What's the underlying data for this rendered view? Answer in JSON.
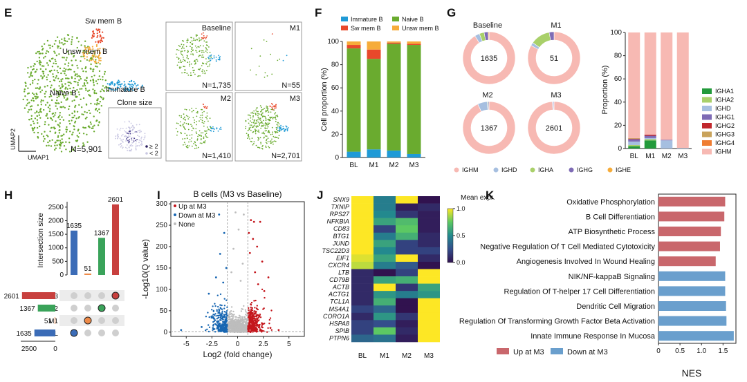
{
  "panels": {
    "E": "E",
    "F": "F",
    "G": "G",
    "H": "H",
    "I": "I",
    "J": "J",
    "K": "K"
  },
  "colors": {
    "naive": "#6aab2f",
    "immature": "#1f9ad6",
    "sw": "#e8482b",
    "unsw": "#f6ac3a",
    "up": "#c9676c",
    "down": "#6a9fcd",
    "volc_up": "#c4161c",
    "volc_down": "#1766b2",
    "volc_none": "#bdbdbd",
    "ighm": "#f7b9b3",
    "ighd": "#a6bfe0",
    "igha1": "#239a3b",
    "igha2": "#a9d06a",
    "ighg1": "#7e6bb5",
    "ighg2": "#c1272d",
    "ighg3": "#c9a35c",
    "ighg4": "#ef7d32"
  },
  "umap": {
    "labels": {
      "sw": "Sw mem B",
      "unsw": "Unsw mem B",
      "naive": "Naive B",
      "immature": "Immature B"
    },
    "n_label": "N=5,901",
    "xaxis": "UMAP1",
    "yaxis": "UMAP2",
    "clone_title": "Clone size",
    "clone_legend": [
      "≥ 2",
      "< 2"
    ],
    "small": [
      {
        "name": "Baseline",
        "n": "N=1,735"
      },
      {
        "name": "M1",
        "n": "N=55"
      },
      {
        "name": "M2",
        "n": "N=1,410"
      },
      {
        "name": "M3",
        "n": "N=2,701"
      }
    ]
  },
  "chart_data": [
    {
      "panel": "F",
      "type": "bar",
      "stacked": true,
      "categories": [
        "BL",
        "M1",
        "M2",
        "M3"
      ],
      "ylabel": "Cell proportion (%)",
      "ylim": [
        0,
        100
      ],
      "yticks": [
        0,
        20,
        40,
        60,
        80,
        100
      ],
      "series": [
        {
          "name": "Immature B",
          "key": "immature",
          "values": [
            5,
            7,
            6,
            3
          ]
        },
        {
          "name": "Naive B",
          "key": "naive",
          "values": [
            89,
            78,
            92,
            94
          ]
        },
        {
          "name": "Sw mem B",
          "key": "sw",
          "values": [
            3,
            8,
            1,
            1
          ]
        },
        {
          "name": "Unsw mem B",
          "key": "unsw",
          "values": [
            3,
            7,
            1,
            2
          ]
        }
      ]
    },
    {
      "panel": "G-donuts",
      "type": "pie",
      "legend": [
        {
          "name": "IGHM",
          "key": "ighm"
        },
        {
          "name": "IGHD",
          "key": "ighd"
        },
        {
          "name": "IGHA",
          "key": "igha2"
        },
        {
          "name": "IGHG",
          "key": "ighg1"
        },
        {
          "name": "IGHE",
          "key": "unsw"
        }
      ],
      "donuts": [
        {
          "title": "Baseline",
          "center": "1635",
          "slices": [
            {
              "key": "ighm",
              "v": 91
            },
            {
              "key": "ighd",
              "v": 3
            },
            {
              "key": "igha2",
              "v": 3
            },
            {
              "key": "ighg1",
              "v": 2.5
            },
            {
              "key": "unsw",
              "v": 0.5
            }
          ]
        },
        {
          "title": "M1",
          "center": "51",
          "slices": [
            {
              "key": "ighm",
              "v": 83
            },
            {
              "key": "ighd",
              "v": 2
            },
            {
              "key": "igha2",
              "v": 12
            },
            {
              "key": "ighg1",
              "v": 3
            }
          ]
        },
        {
          "title": "M2",
          "center": "1367",
          "slices": [
            {
              "key": "ighm",
              "v": 93
            },
            {
              "key": "ighd",
              "v": 6
            },
            {
              "key": "igha2",
              "v": 0.5
            },
            {
              "key": "ighg1",
              "v": 0.5
            }
          ]
        },
        {
          "title": "M3",
          "center": "2601",
          "slices": [
            {
              "key": "ighm",
              "v": 99
            },
            {
              "key": "ighd",
              "v": 0.6
            },
            {
              "key": "ighg1",
              "v": 0.4
            }
          ]
        }
      ]
    },
    {
      "panel": "G-bars",
      "type": "bar",
      "stacked": true,
      "categories": [
        "BL",
        "M1",
        "M2",
        "M3"
      ],
      "ylabel": "Proportion (%)",
      "ylim": [
        0,
        100
      ],
      "yticks": [
        0,
        20,
        40,
        60,
        80,
        100
      ],
      "series": [
        {
          "name": "IGHA1",
          "key": "igha1",
          "values": [
            2,
            7,
            0,
            0
          ]
        },
        {
          "name": "IGHA2",
          "key": "igha2",
          "values": [
            1,
            1,
            0,
            0
          ]
        },
        {
          "name": "IGHD",
          "key": "ighd",
          "values": [
            3,
            1,
            7,
            0.5
          ]
        },
        {
          "name": "IGHG1",
          "key": "ighg1",
          "values": [
            2,
            2,
            0.5,
            0
          ]
        },
        {
          "name": "IGHG2",
          "key": "ighg2",
          "values": [
            0.5,
            1,
            0,
            0
          ]
        },
        {
          "name": "IGHG3",
          "key": "ighg3",
          "values": [
            0.5,
            0,
            0,
            0
          ]
        },
        {
          "name": "IGHG4",
          "key": "ighg4",
          "values": [
            0,
            0,
            0,
            0
          ]
        },
        {
          "name": "IGHM",
          "key": "ighm",
          "values": [
            91,
            88,
            92.5,
            99.5
          ]
        }
      ]
    },
    {
      "panel": "H",
      "type": "bar",
      "ylabel": "Intersection size",
      "yticks": [
        0,
        500,
        1000,
        1500,
        2000,
        2500
      ],
      "bars": [
        {
          "value": 1635,
          "key": "BL",
          "color": "#3b6cb7"
        },
        {
          "value": 51,
          "key": "M1",
          "color": "#ee8a48"
        },
        {
          "value": 1367,
          "key": "M2",
          "color": "#3aa35a"
        },
        {
          "value": 2601,
          "key": "M3",
          "color": "#c8403e"
        }
      ],
      "sets": [
        {
          "name": "M3",
          "size": 2601,
          "color": "#c8403e"
        },
        {
          "name": "M2",
          "size": 1367,
          "color": "#3aa35a"
        },
        {
          "name": "M1",
          "size": 51,
          "color": "#ee8a48"
        },
        {
          "name": "BL",
          "size": 1635,
          "color": "#3b6cb7"
        }
      ],
      "set_ticks": [
        "2500",
        "0"
      ]
    },
    {
      "panel": "I",
      "type": "scatter",
      "title": "B cells (M3 vs Baseline)",
      "xlabel": "Log2 (fold change)",
      "ylabel": "-Log10(Q value)",
      "xlim": [
        -6.5,
        6.5
      ],
      "ylim": [
        -10,
        305
      ],
      "xticks": [
        -5.0,
        -2.5,
        0.0,
        2.5,
        5.0
      ],
      "yticks": [
        0,
        50,
        100,
        150,
        200,
        250,
        300
      ],
      "legend": [
        "Up at M3",
        "Down at M3",
        "None"
      ],
      "annotated_points": [
        {
          "x": 1.3,
          "y": 262,
          "g": "up"
        },
        {
          "x": 1.6,
          "y": 258,
          "g": "up"
        },
        {
          "x": 2.2,
          "y": 258,
          "g": "up"
        },
        {
          "x": 1.1,
          "y": 232,
          "g": "up"
        },
        {
          "x": 1.5,
          "y": 218,
          "g": "up"
        },
        {
          "x": 1.9,
          "y": 200,
          "g": "up"
        },
        {
          "x": 1.2,
          "y": 185,
          "g": "up"
        },
        {
          "x": 2.4,
          "y": 165,
          "g": "up"
        },
        {
          "x": 1.7,
          "y": 140,
          "g": "up"
        },
        {
          "x": 3.0,
          "y": 128,
          "g": "up"
        },
        {
          "x": 2.0,
          "y": 112,
          "g": "up"
        },
        {
          "x": 2.6,
          "y": 96,
          "g": "up"
        },
        {
          "x": -1.8,
          "y": 275,
          "g": "down"
        },
        {
          "x": -1.3,
          "y": 232,
          "g": "down"
        },
        {
          "x": -1.7,
          "y": 183,
          "g": "down"
        },
        {
          "x": -1.1,
          "y": 150,
          "g": "down"
        },
        {
          "x": -2.1,
          "y": 128,
          "g": "down"
        },
        {
          "x": -1.4,
          "y": 116,
          "g": "down"
        },
        {
          "x": -2.8,
          "y": 90,
          "g": "down"
        },
        {
          "x": -0.2,
          "y": 280,
          "g": "none"
        },
        {
          "x": 0.6,
          "y": 275,
          "g": "none"
        },
        {
          "x": 0.1,
          "y": 240,
          "g": "none"
        },
        {
          "x": -0.4,
          "y": 195,
          "g": "none"
        },
        {
          "x": 0.5,
          "y": 160,
          "g": "none"
        },
        {
          "x": -0.6,
          "y": 140,
          "g": "none"
        },
        {
          "x": 0.3,
          "y": 120,
          "g": "none"
        },
        {
          "x": -5.5,
          "y": 5,
          "g": "down"
        },
        {
          "x": 4.0,
          "y": 5,
          "g": "up"
        },
        {
          "x": -3.5,
          "y": 12,
          "g": "down"
        },
        {
          "x": 3.2,
          "y": 10,
          "g": "up"
        }
      ]
    },
    {
      "panel": "J",
      "type": "heatmap",
      "columns": [
        "BL",
        "M1",
        "M2",
        "M3"
      ],
      "rows": [
        "SNX9",
        "TXNIP",
        "RPS27",
        "NFKBIA",
        "CD83",
        "BTG1",
        "JUND",
        "TSC22D3",
        "EIF1",
        "CXCR4",
        "LTB",
        "CD79B",
        "ACTB",
        "ACTG1",
        "TCL1A",
        "MS4A1",
        "CORO1A",
        "HSPA8",
        "SPIB",
        "PTPN6"
      ],
      "values": [
        [
          1.0,
          0.45,
          1.0,
          0.0
        ],
        [
          1.0,
          0.45,
          0.05,
          0.1
        ],
        [
          1.0,
          0.5,
          0.15,
          0.05
        ],
        [
          1.0,
          0.6,
          0.7,
          0.05
        ],
        [
          1.0,
          0.2,
          0.75,
          0.05
        ],
        [
          1.0,
          0.45,
          0.65,
          0.1
        ],
        [
          1.0,
          0.6,
          0.2,
          0.1
        ],
        [
          1.0,
          0.5,
          0.2,
          0.2
        ],
        [
          0.95,
          0.6,
          1.0,
          0.1
        ],
        [
          0.9,
          0.45,
          0.3,
          0.0
        ],
        [
          0.1,
          0.0,
          0.2,
          1.0
        ],
        [
          0.1,
          0.6,
          0.65,
          1.0
        ],
        [
          0.1,
          1.0,
          0.15,
          0.6
        ],
        [
          0.1,
          0.55,
          0.45,
          0.55
        ],
        [
          0.1,
          0.65,
          0.0,
          1.0
        ],
        [
          0.2,
          0.35,
          0.0,
          1.0
        ],
        [
          0.1,
          0.55,
          0.15,
          1.0
        ],
        [
          0.2,
          0.25,
          0.05,
          1.0
        ],
        [
          0.2,
          0.75,
          0.1,
          1.0
        ],
        [
          0.35,
          0.4,
          0.05,
          1.0
        ]
      ],
      "colorbar_title": "Mean expr.",
      "colorbar_ticks": [
        "1.0",
        "0.5",
        "0.0"
      ]
    },
    {
      "panel": "K",
      "type": "bar",
      "orientation": "horizontal",
      "xlabel": "NES",
      "xlim": [
        0,
        1.8
      ],
      "xticks": [
        "0",
        "0.5",
        "1.0",
        "1.5"
      ],
      "categories": [
        "Oxidative Phosphorylation",
        "B Cell Differentiation",
        "ATP Biosynthetic Process",
        "Negative Regulation Of T Cell Mediated Cytotoxicity",
        "Angiogenesis Involved In Wound Healing",
        "NIK/NF-kappaB Signaling",
        "Regulation Of T-helper 17 Cell Differentiation",
        "Dendritic Cell Migration",
        "Regulation Of Transforming Growth Factor Beta Activation",
        "Innate Immune Response In Mucosa"
      ],
      "values": [
        1.55,
        1.53,
        1.45,
        1.43,
        1.33,
        1.55,
        1.55,
        1.57,
        1.58,
        1.75
      ],
      "groups": [
        "up",
        "up",
        "up",
        "up",
        "up",
        "down",
        "down",
        "down",
        "down",
        "down"
      ],
      "legend": [
        {
          "name": "Up at M3",
          "key": "up"
        },
        {
          "name": "Down at M3",
          "key": "down"
        }
      ]
    }
  ]
}
